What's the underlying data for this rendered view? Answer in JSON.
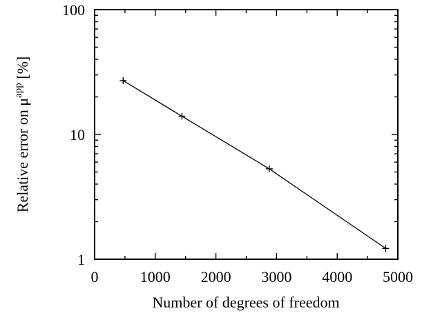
{
  "chart_data": {
    "type": "line",
    "title": "",
    "xlabel": "Number of degrees of freedom",
    "ylabel_main": "Relative error on μ",
    "ylabel_superscript": "app",
    "ylabel_unit": " [%]",
    "x": [
      470,
      1440,
      2880,
      4800
    ],
    "series": [
      {
        "values": [
          27,
          14,
          5.3,
          1.22
        ]
      }
    ],
    "xlim": [
      0,
      5000
    ],
    "ylim": [
      1,
      100
    ],
    "yscale": "log",
    "x_ticks": [
      0,
      1000,
      2000,
      3000,
      4000,
      5000
    ],
    "x_tick_labels": [
      "0",
      "1000",
      "2000",
      "3000",
      "4000",
      "5000"
    ],
    "y_ticks": [
      1,
      10,
      100
    ],
    "y_tick_labels": [
      "1",
      "10",
      "100"
    ],
    "marker": "plus",
    "grid": false,
    "legend": "none"
  }
}
